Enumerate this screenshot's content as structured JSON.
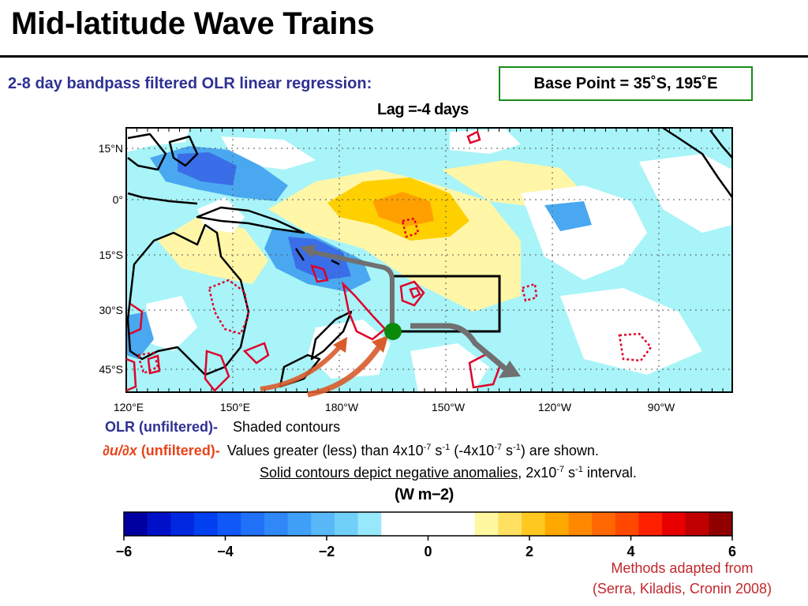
{
  "header": {
    "title": "Mid-latitude Wave Trains",
    "subtitle": "2-8 day bandpass filtered OLR linear regression:",
    "base_point": "Base Point = 35˚S, 195˚E"
  },
  "map": {
    "lag_label": "Lag =-4 days",
    "lat_labels": [
      "15°N",
      "0°",
      "15°S",
      "30°S",
      "45°S"
    ],
    "lon_labels": [
      "120°E",
      "150°E",
      "180°W",
      "150°W",
      "120°W",
      "90°W"
    ],
    "colors": {
      "strong_negative": "#3a6ee8",
      "moderate_negative": "#4aa8f0",
      "weak_negative": "#a8f4f8",
      "weak_positive": "#fff6a8",
      "moderate_positive": "#ffd000",
      "strong_positive": "#ffa000",
      "contour": "#e0002a",
      "wave_arrow": "#707070",
      "ridge_arrow": "#d95b2c",
      "base_point": "#0a8a0a"
    }
  },
  "legend": {
    "olr_label": "OLR (unfiltered)-",
    "olr_desc": "Shaded contours",
    "dudx_sym": "∂u/∂x",
    "dudx_label": "(unfiltered)-",
    "dudx_desc_1": "Values greater (less) than 4x10",
    "dudx_exp_1": "-7",
    "dudx_desc_2": " s",
    "dudx_exp_2": "-1",
    "dudx_desc_3": " (-4x10",
    "dudx_exp_3": "-7",
    "dudx_desc_4": " s",
    "dudx_exp_4": "-1",
    "dudx_desc_5": ") are shown.",
    "solid_underlined": "Solid contours depict negative anomalies",
    "solid_rest_1": ", 2x10",
    "solid_exp_1": "-7",
    "solid_rest_2": " s",
    "solid_exp_2": "-1",
    "solid_rest_3": " interval."
  },
  "colorbar": {
    "units": "(W m−2)",
    "tick_labels": [
      "−6",
      "−4",
      "−2",
      "0",
      "2",
      "4",
      "6"
    ],
    "min": -6,
    "max": 6,
    "colors": [
      "#0000a0",
      "#0010c8",
      "#0028e0",
      "#0040f0",
      "#1058f8",
      "#2070f8",
      "#3088f8",
      "#40a0f8",
      "#58b8f8",
      "#70d0f8",
      "#98e8fc",
      "#ffffff",
      "#ffffff",
      "#ffffff",
      "#ffffff",
      "#fff8a0",
      "#ffe060",
      "#ffc820",
      "#ffa800",
      "#ff8800",
      "#ff6800",
      "#ff4800",
      "#ff2000",
      "#e80000",
      "#c00000",
      "#900000"
    ]
  },
  "credit": {
    "line1": "Methods adapted from",
    "line2": "(Serra, Kiladis, Cronin 2008)"
  }
}
